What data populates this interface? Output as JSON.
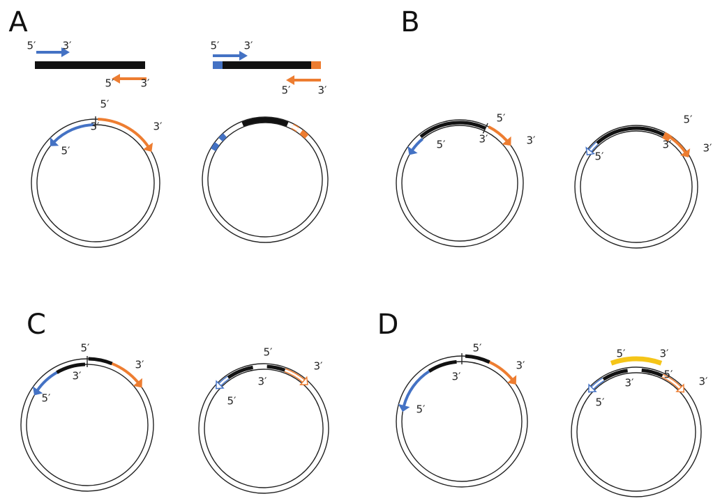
{
  "panels": [
    {
      "label": "A",
      "annotations": [
        "5′",
        "3′",
        "5′",
        "3′",
        "5′",
        "3′",
        "5′",
        "3′",
        "5′",
        "3′",
        "3′",
        "5′"
      ]
    },
    {
      "label": "B",
      "annotations": [
        "5′",
        "3′",
        "3′",
        "5′",
        "5′",
        "3′",
        "3′",
        "5′"
      ]
    },
    {
      "label": "C",
      "annotations": [
        "5′",
        "3′",
        "3′",
        "5′",
        "5′",
        "3′",
        "3′",
        "5′"
      ]
    },
    {
      "label": "D",
      "annotations": [
        "5′",
        "3′",
        "3′",
        "5′",
        "5′",
        "3′",
        "3′",
        "5′",
        "3′",
        "5′"
      ]
    }
  ]
}
